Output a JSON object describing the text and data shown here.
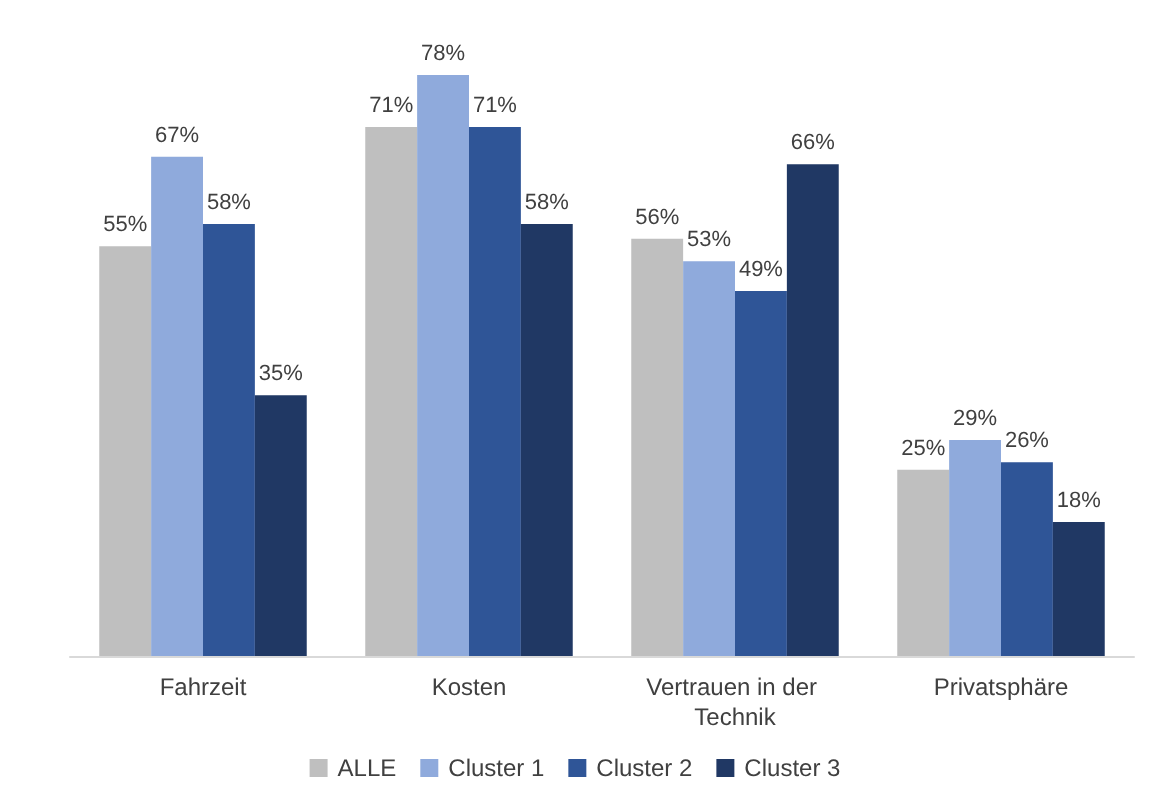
{
  "chart_data": {
    "type": "bar",
    "categories": [
      "Fahrzeit",
      "Kosten",
      "Vertrauen in der Technik",
      "Privatsphäre"
    ],
    "series": [
      {
        "name": "ALLE",
        "color": "#bfbfbf",
        "values": [
          55,
          71,
          56,
          25
        ],
        "value_labels": [
          "55%",
          "71%",
          "56%",
          "25%"
        ]
      },
      {
        "name": "Cluster 1",
        "color": "#8faadc",
        "values": [
          67,
          78,
          53,
          29
        ],
        "value_labels": [
          "67%",
          "78%",
          "53%",
          "29%"
        ]
      },
      {
        "name": "Cluster 2",
        "color": "#2f5597",
        "values": [
          58,
          71,
          49,
          26
        ],
        "value_labels": [
          "58%",
          "71%",
          "49%",
          "26%"
        ]
      },
      {
        "name": "Cluster 3",
        "color": "#203864",
        "values": [
          35,
          58,
          66,
          18
        ],
        "value_labels": [
          "35%",
          "58%",
          "66%",
          "18%"
        ]
      }
    ],
    "grid": false,
    "legend": "bottom"
  }
}
